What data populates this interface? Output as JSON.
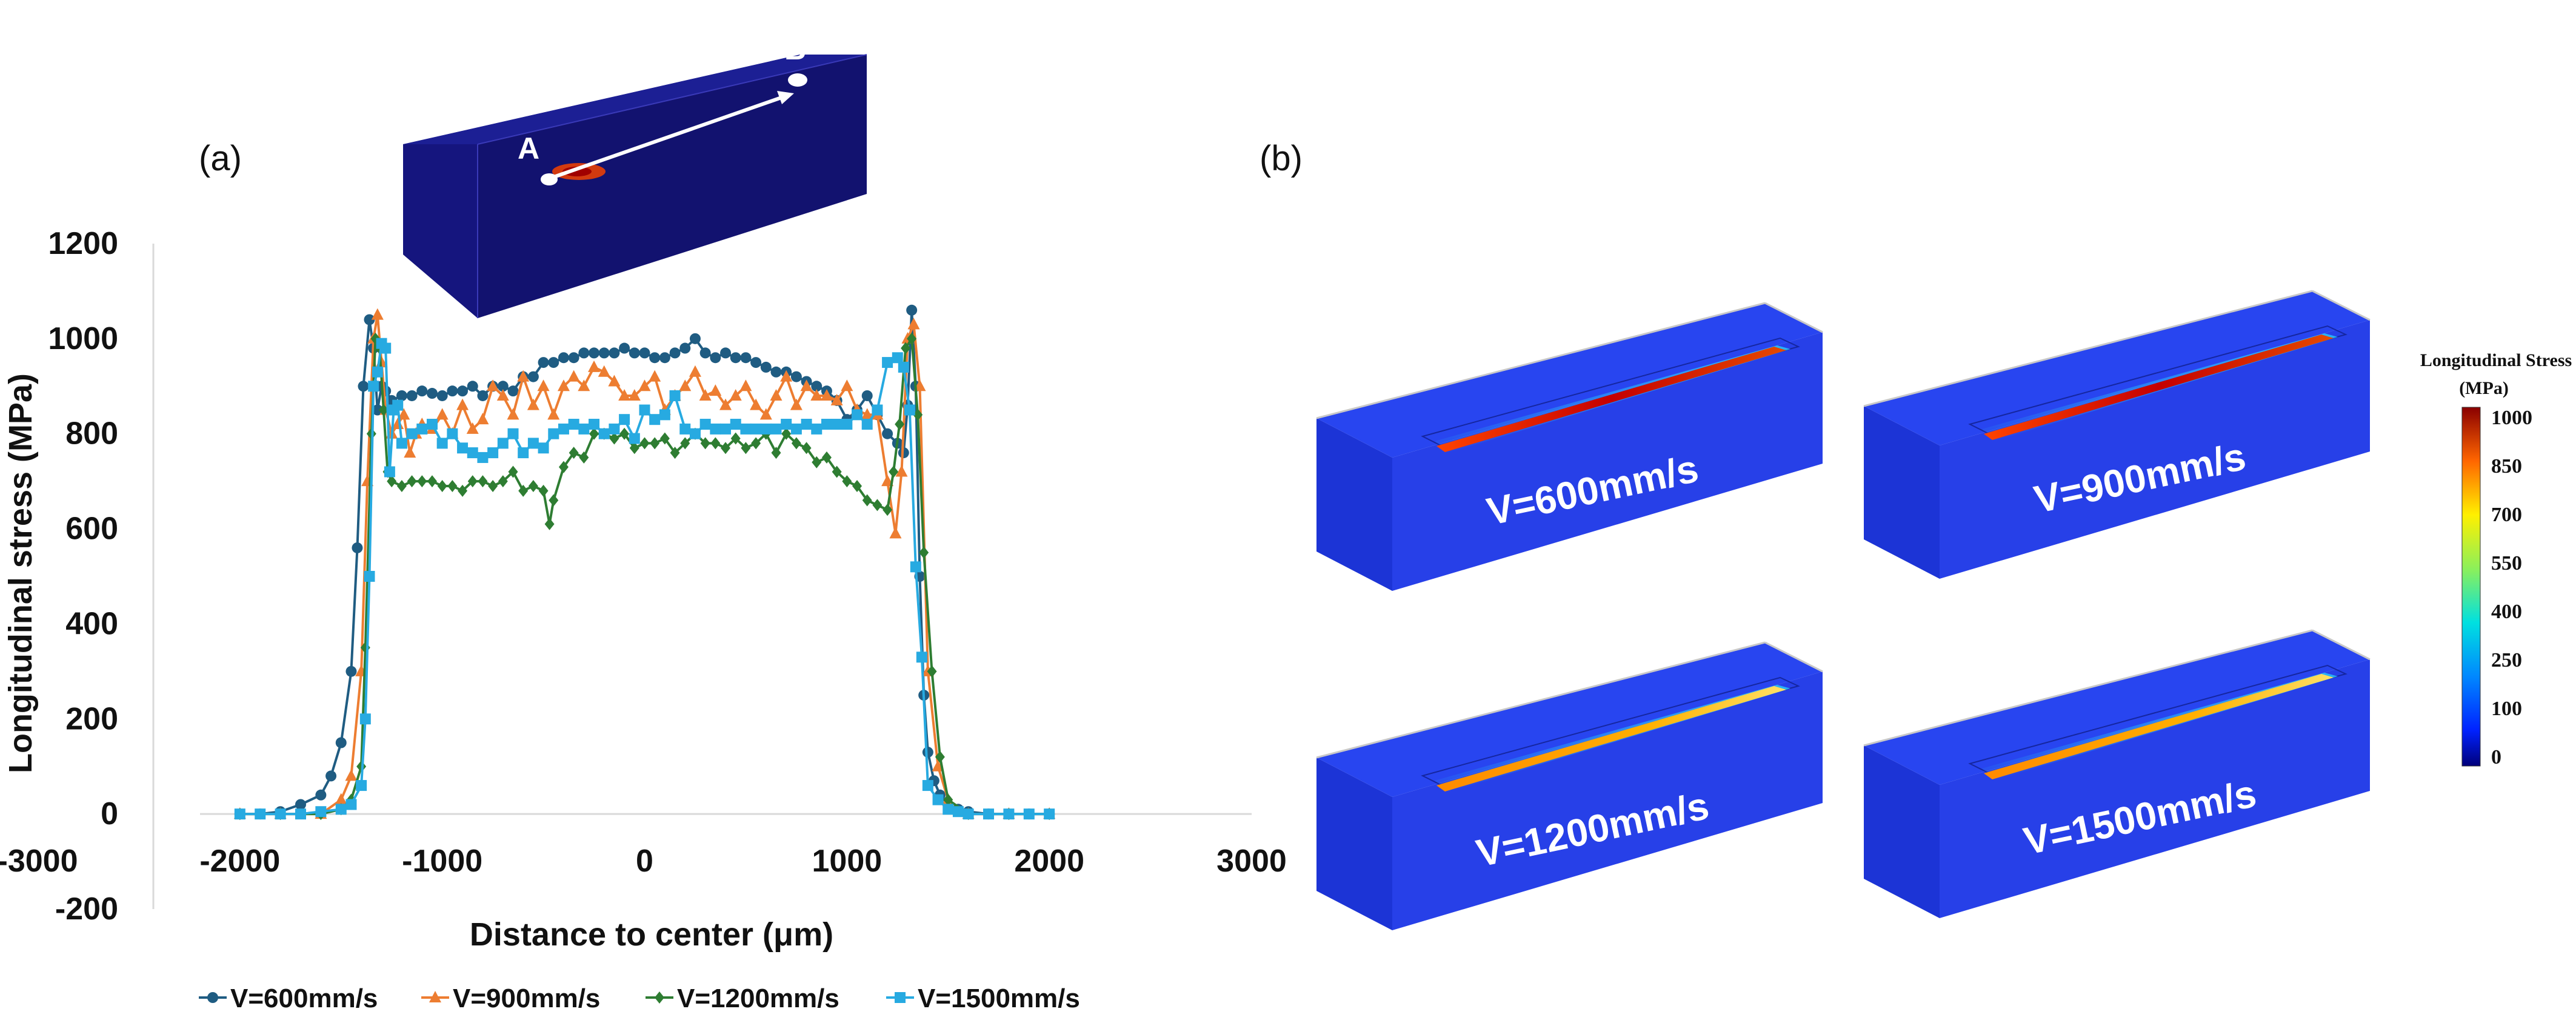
{
  "panel_labels": {
    "a": "(a)",
    "b": "(b)"
  },
  "inset": {
    "point_a": "A",
    "point_b": "B"
  },
  "chart_data": {
    "type": "line",
    "title": "",
    "xlabel": "Distance to center (μm)",
    "ylabel": "Longitudinal stress (MPa)",
    "xlim": [
      -3000,
      3000
    ],
    "ylim": [
      -200,
      1200
    ],
    "xticks": [
      -3000,
      -2000,
      -1000,
      0,
      1000,
      2000,
      3000
    ],
    "yticks": [
      -200,
      0,
      200,
      400,
      600,
      800,
      1000,
      1200
    ],
    "legend_position": "bottom",
    "series": [
      {
        "name": "V=600mm/s",
        "color": "#1f5c82",
        "marker": "circle",
        "x": [
          -2000,
          -1900,
          -1800,
          -1700,
          -1600,
          -1550,
          -1500,
          -1450,
          -1420,
          -1390,
          -1360,
          -1340,
          -1320,
          -1300,
          -1280,
          -1250,
          -1200,
          -1150,
          -1100,
          -1050,
          -1000,
          -950,
          -900,
          -850,
          -800,
          -750,
          -700,
          -650,
          -600,
          -550,
          -500,
          -450,
          -400,
          -350,
          -300,
          -250,
          -200,
          -150,
          -100,
          -50,
          0,
          50,
          100,
          150,
          200,
          250,
          300,
          350,
          400,
          450,
          500,
          550,
          600,
          650,
          700,
          750,
          800,
          850,
          900,
          950,
          1000,
          1050,
          1100,
          1150,
          1200,
          1250,
          1280,
          1300,
          1320,
          1340,
          1360,
          1380,
          1400,
          1430,
          1460,
          1500,
          1550,
          1600,
          1700,
          1800,
          1900,
          2000
        ],
        "y": [
          0,
          0,
          5,
          20,
          40,
          80,
          150,
          300,
          560,
          900,
          1040,
          980,
          850,
          900,
          890,
          870,
          880,
          880,
          890,
          885,
          880,
          890,
          890,
          900,
          880,
          900,
          900,
          890,
          920,
          920,
          950,
          950,
          960,
          960,
          970,
          970,
          970,
          970,
          980,
          970,
          970,
          960,
          960,
          970,
          980,
          1000,
          970,
          960,
          970,
          960,
          960,
          950,
          940,
          930,
          930,
          920,
          910,
          900,
          890,
          870,
          830,
          850,
          880,
          840,
          800,
          780,
          760,
          860,
          1060,
          900,
          500,
          250,
          130,
          70,
          40,
          20,
          10,
          5,
          0,
          0,
          0,
          0
        ]
      },
      {
        "name": "V=900mm/s",
        "color": "#ed7d31",
        "marker": "triangle",
        "x": [
          -2000,
          -1800,
          -1600,
          -1500,
          -1450,
          -1400,
          -1370,
          -1340,
          -1320,
          -1300,
          -1280,
          -1250,
          -1220,
          -1190,
          -1160,
          -1130,
          -1100,
          -1050,
          -1000,
          -950,
          -900,
          -850,
          -800,
          -750,
          -700,
          -650,
          -600,
          -550,
          -500,
          -450,
          -400,
          -350,
          -300,
          -250,
          -200,
          -150,
          -100,
          -50,
          0,
          50,
          100,
          150,
          200,
          250,
          300,
          350,
          400,
          450,
          500,
          550,
          600,
          650,
          700,
          750,
          800,
          850,
          900,
          950,
          1000,
          1050,
          1100,
          1150,
          1200,
          1240,
          1270,
          1300,
          1330,
          1360,
          1400,
          1450,
          1500,
          1600,
          1800,
          2000
        ],
        "y": [
          0,
          0,
          0,
          30,
          80,
          300,
          700,
          1000,
          1050,
          950,
          850,
          800,
          820,
          840,
          760,
          800,
          820,
          810,
          840,
          800,
          860,
          810,
          830,
          900,
          880,
          840,
          920,
          860,
          900,
          840,
          900,
          920,
          900,
          940,
          930,
          910,
          880,
          880,
          900,
          920,
          850,
          880,
          900,
          930,
          880,
          890,
          860,
          880,
          900,
          860,
          840,
          880,
          920,
          860,
          900,
          880,
          880,
          870,
          900,
          850,
          840,
          840,
          700,
          590,
          720,
          1000,
          1030,
          900,
          300,
          100,
          30,
          0,
          0,
          0
        ]
      },
      {
        "name": "V=1200mm/s",
        "color": "#2e7d32",
        "marker": "diamond",
        "x": [
          -2000,
          -1800,
          -1600,
          -1500,
          -1450,
          -1400,
          -1380,
          -1350,
          -1330,
          -1310,
          -1290,
          -1270,
          -1250,
          -1200,
          -1150,
          -1100,
          -1050,
          -1000,
          -950,
          -900,
          -850,
          -800,
          -750,
          -700,
          -650,
          -600,
          -550,
          -500,
          -470,
          -450,
          -400,
          -350,
          -300,
          -250,
          -200,
          -150,
          -100,
          -50,
          0,
          50,
          100,
          150,
          200,
          250,
          300,
          350,
          400,
          450,
          500,
          550,
          600,
          650,
          700,
          750,
          800,
          850,
          900,
          950,
          1000,
          1050,
          1100,
          1150,
          1200,
          1230,
          1260,
          1290,
          1320,
          1350,
          1380,
          1420,
          1460,
          1500,
          1600,
          1800,
          2000
        ],
        "y": [
          0,
          0,
          0,
          10,
          30,
          100,
          350,
          800,
          1000,
          980,
          850,
          720,
          700,
          690,
          700,
          700,
          700,
          690,
          690,
          680,
          700,
          700,
          690,
          700,
          720,
          680,
          690,
          680,
          610,
          660,
          730,
          760,
          750,
          800,
          800,
          790,
          800,
          770,
          780,
          780,
          790,
          760,
          780,
          800,
          780,
          780,
          770,
          790,
          770,
          780,
          800,
          760,
          800,
          780,
          770,
          740,
          750,
          720,
          700,
          690,
          660,
          650,
          640,
          720,
          820,
          980,
          1000,
          840,
          550,
          300,
          120,
          30,
          0,
          0,
          0
        ]
      },
      {
        "name": "V=1500mm/s",
        "color": "#27aae1",
        "marker": "square",
        "x": [
          -2000,
          -1900,
          -1800,
          -1700,
          -1600,
          -1500,
          -1450,
          -1400,
          -1380,
          -1360,
          -1340,
          -1320,
          -1300,
          -1280,
          -1260,
          -1240,
          -1220,
          -1200,
          -1150,
          -1100,
          -1050,
          -1000,
          -950,
          -900,
          -850,
          -800,
          -750,
          -700,
          -650,
          -600,
          -550,
          -500,
          -450,
          -400,
          -350,
          -300,
          -250,
          -200,
          -150,
          -100,
          -50,
          0,
          50,
          100,
          150,
          200,
          250,
          300,
          350,
          400,
          450,
          500,
          550,
          600,
          650,
          700,
          750,
          800,
          850,
          900,
          950,
          1000,
          1050,
          1100,
          1150,
          1200,
          1250,
          1280,
          1310,
          1340,
          1370,
          1400,
          1450,
          1500,
          1550,
          1600,
          1700,
          1800,
          1900,
          2000
        ],
        "y": [
          0,
          0,
          0,
          0,
          5,
          10,
          20,
          60,
          200,
          500,
          900,
          930,
          990,
          980,
          720,
          850,
          860,
          780,
          800,
          810,
          820,
          780,
          800,
          770,
          760,
          750,
          760,
          780,
          800,
          760,
          780,
          770,
          800,
          810,
          820,
          810,
          820,
          800,
          810,
          830,
          790,
          850,
          830,
          840,
          880,
          810,
          800,
          820,
          810,
          810,
          820,
          810,
          810,
          810,
          810,
          820,
          810,
          820,
          810,
          820,
          820,
          820,
          840,
          820,
          850,
          950,
          960,
          940,
          850,
          520,
          330,
          60,
          30,
          10,
          5,
          0,
          0,
          0,
          0,
          0
        ]
      }
    ]
  },
  "simulations": [
    {
      "label": "V=600mm/s",
      "intensity": 1.0
    },
    {
      "label": "V=900mm/s",
      "intensity": 1.0
    },
    {
      "label": "V=1200mm/s",
      "intensity": 0.55
    },
    {
      "label": "V=1500mm/s",
      "intensity": 0.45
    }
  ],
  "colorbar": {
    "title_line1": "Longitudinal Stress",
    "title_line2": "(MPa)",
    "ticks": [
      "1000",
      "850",
      "700",
      "550",
      "400",
      "250",
      "100",
      "0"
    ]
  }
}
